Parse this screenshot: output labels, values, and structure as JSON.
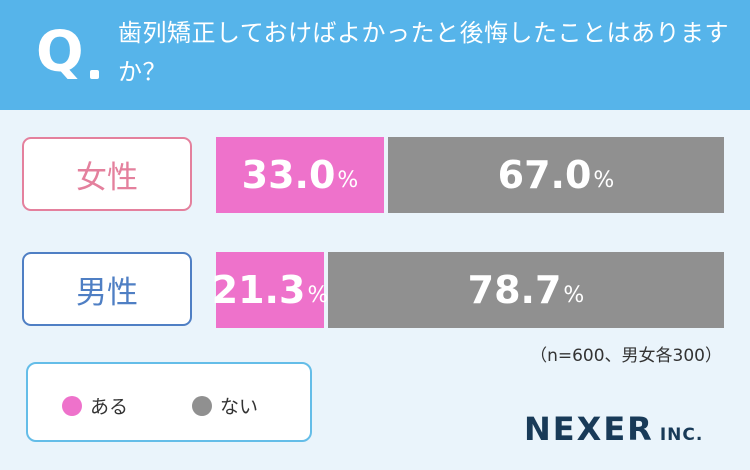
{
  "question": {
    "mark": "Q",
    "text": "歯列矯正しておけばよかったと後悔したことはありますか？"
  },
  "note": "（n=600、男女各300）",
  "legend": {
    "yes_label": "ある",
    "no_label": "ない"
  },
  "logo": {
    "main": "NEXER",
    "sub": "INC."
  },
  "colors": {
    "header": "#56b4ea",
    "yes": "#ee72cb",
    "no": "#909090",
    "female": "#e4809d",
    "male": "#4f7fc4",
    "background": "#eaf4fb"
  },
  "chart_data": {
    "type": "bar",
    "orientation": "horizontal",
    "stacked": true,
    "categories": [
      "女性",
      "男性"
    ],
    "series": [
      {
        "name": "ある",
        "values": [
          33.0,
          21.3
        ],
        "labels": [
          "33.0",
          "21.3"
        ]
      },
      {
        "name": "ない",
        "values": [
          67.0,
          78.7
        ],
        "labels": [
          "67.0",
          "78.7"
        ]
      }
    ],
    "unit": "%",
    "xlim": [
      0,
      100
    ]
  }
}
